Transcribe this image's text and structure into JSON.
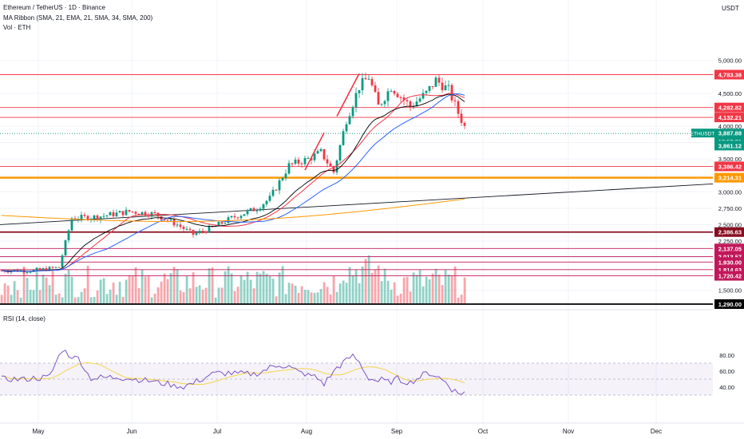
{
  "header": {
    "title": "Ethereum / TetherUS · 1D · Binance",
    "indicator1": "MA Ribbon (SMA, 21, EMA, 21, SMA, 34, SMA, 200)",
    "indicator2": "Vol · ETH",
    "currency": "USDT",
    "rsi_label": "RSI (14, close)"
  },
  "chart_data": {
    "type": "candlestick",
    "symbol": "ETHUSDT",
    "y_ticks": [
      1500,
      1750,
      2000,
      2250,
      2500,
      2750,
      3000,
      3250,
      3500,
      3750,
      4000,
      4250,
      4500,
      4750,
      5000
    ],
    "y_tick_labels": [
      "1,500.00",
      "1,750.00",
      "2,000.00",
      "2,250.00",
      "2,500.00",
      "2,750.00",
      "3,000.00",
      "3,250.00",
      "3,500.00",
      "3,750.00",
      "4,000.00",
      "4,250.00",
      "4,500.00",
      "4,750.00",
      "5,000.00"
    ],
    "months": [
      "May",
      "Jun",
      "Jul",
      "Aug",
      "Sep",
      "Oct",
      "Nov",
      "Dec"
    ],
    "price_levels": [
      {
        "value": 4783.38,
        "label": "4,783.38",
        "color": "#f23645"
      },
      {
        "value": 4282.82,
        "label": "4,282.82",
        "color": "#f23645"
      },
      {
        "value": 4132.21,
        "label": "4,132.21",
        "color": "#f23645"
      },
      {
        "value": 3386.42,
        "label": "3,386.42",
        "color": "#f23645"
      },
      {
        "value": 3214.31,
        "label": "3,214.31",
        "color": "#ff9800"
      },
      {
        "value": 2386.63,
        "label": "2,386.63",
        "color": "#880e1f"
      },
      {
        "value": 2137.05,
        "label": "2,137.05",
        "color": "#c2185b"
      },
      {
        "value": 2013.57,
        "label": "2,013.57",
        "color": "#c2185b"
      },
      {
        "value": 1930.0,
        "label": "1,930.00",
        "color": "#c2185b"
      },
      {
        "value": 1814.63,
        "label": "1,814.63",
        "color": "#c2185b"
      },
      {
        "value": 1720.42,
        "label": "1,720.42",
        "color": "#c2185b"
      },
      {
        "value": 1290.0,
        "label": "1,290.00",
        "color": "#000000"
      }
    ],
    "current_price": {
      "label": "ETHUSDT",
      "value": 3887.88,
      "value_label": "3,887.88",
      "countdown": "12:58:21",
      "color": "#089981"
    },
    "secondary_price": {
      "value": 3861.12,
      "label": "3,861.12"
    },
    "rsi_ticks": [
      "80.00",
      "60.00",
      "40.00"
    ],
    "colors": {
      "up": "#089981",
      "down": "#f23645",
      "sma21": "#f23645",
      "ema21": "#000000",
      "sma34": "#2962ff",
      "sma200": "#ff9800",
      "rsi": "#7e57c2",
      "rsi_ma": "#f5d44e"
    }
  }
}
